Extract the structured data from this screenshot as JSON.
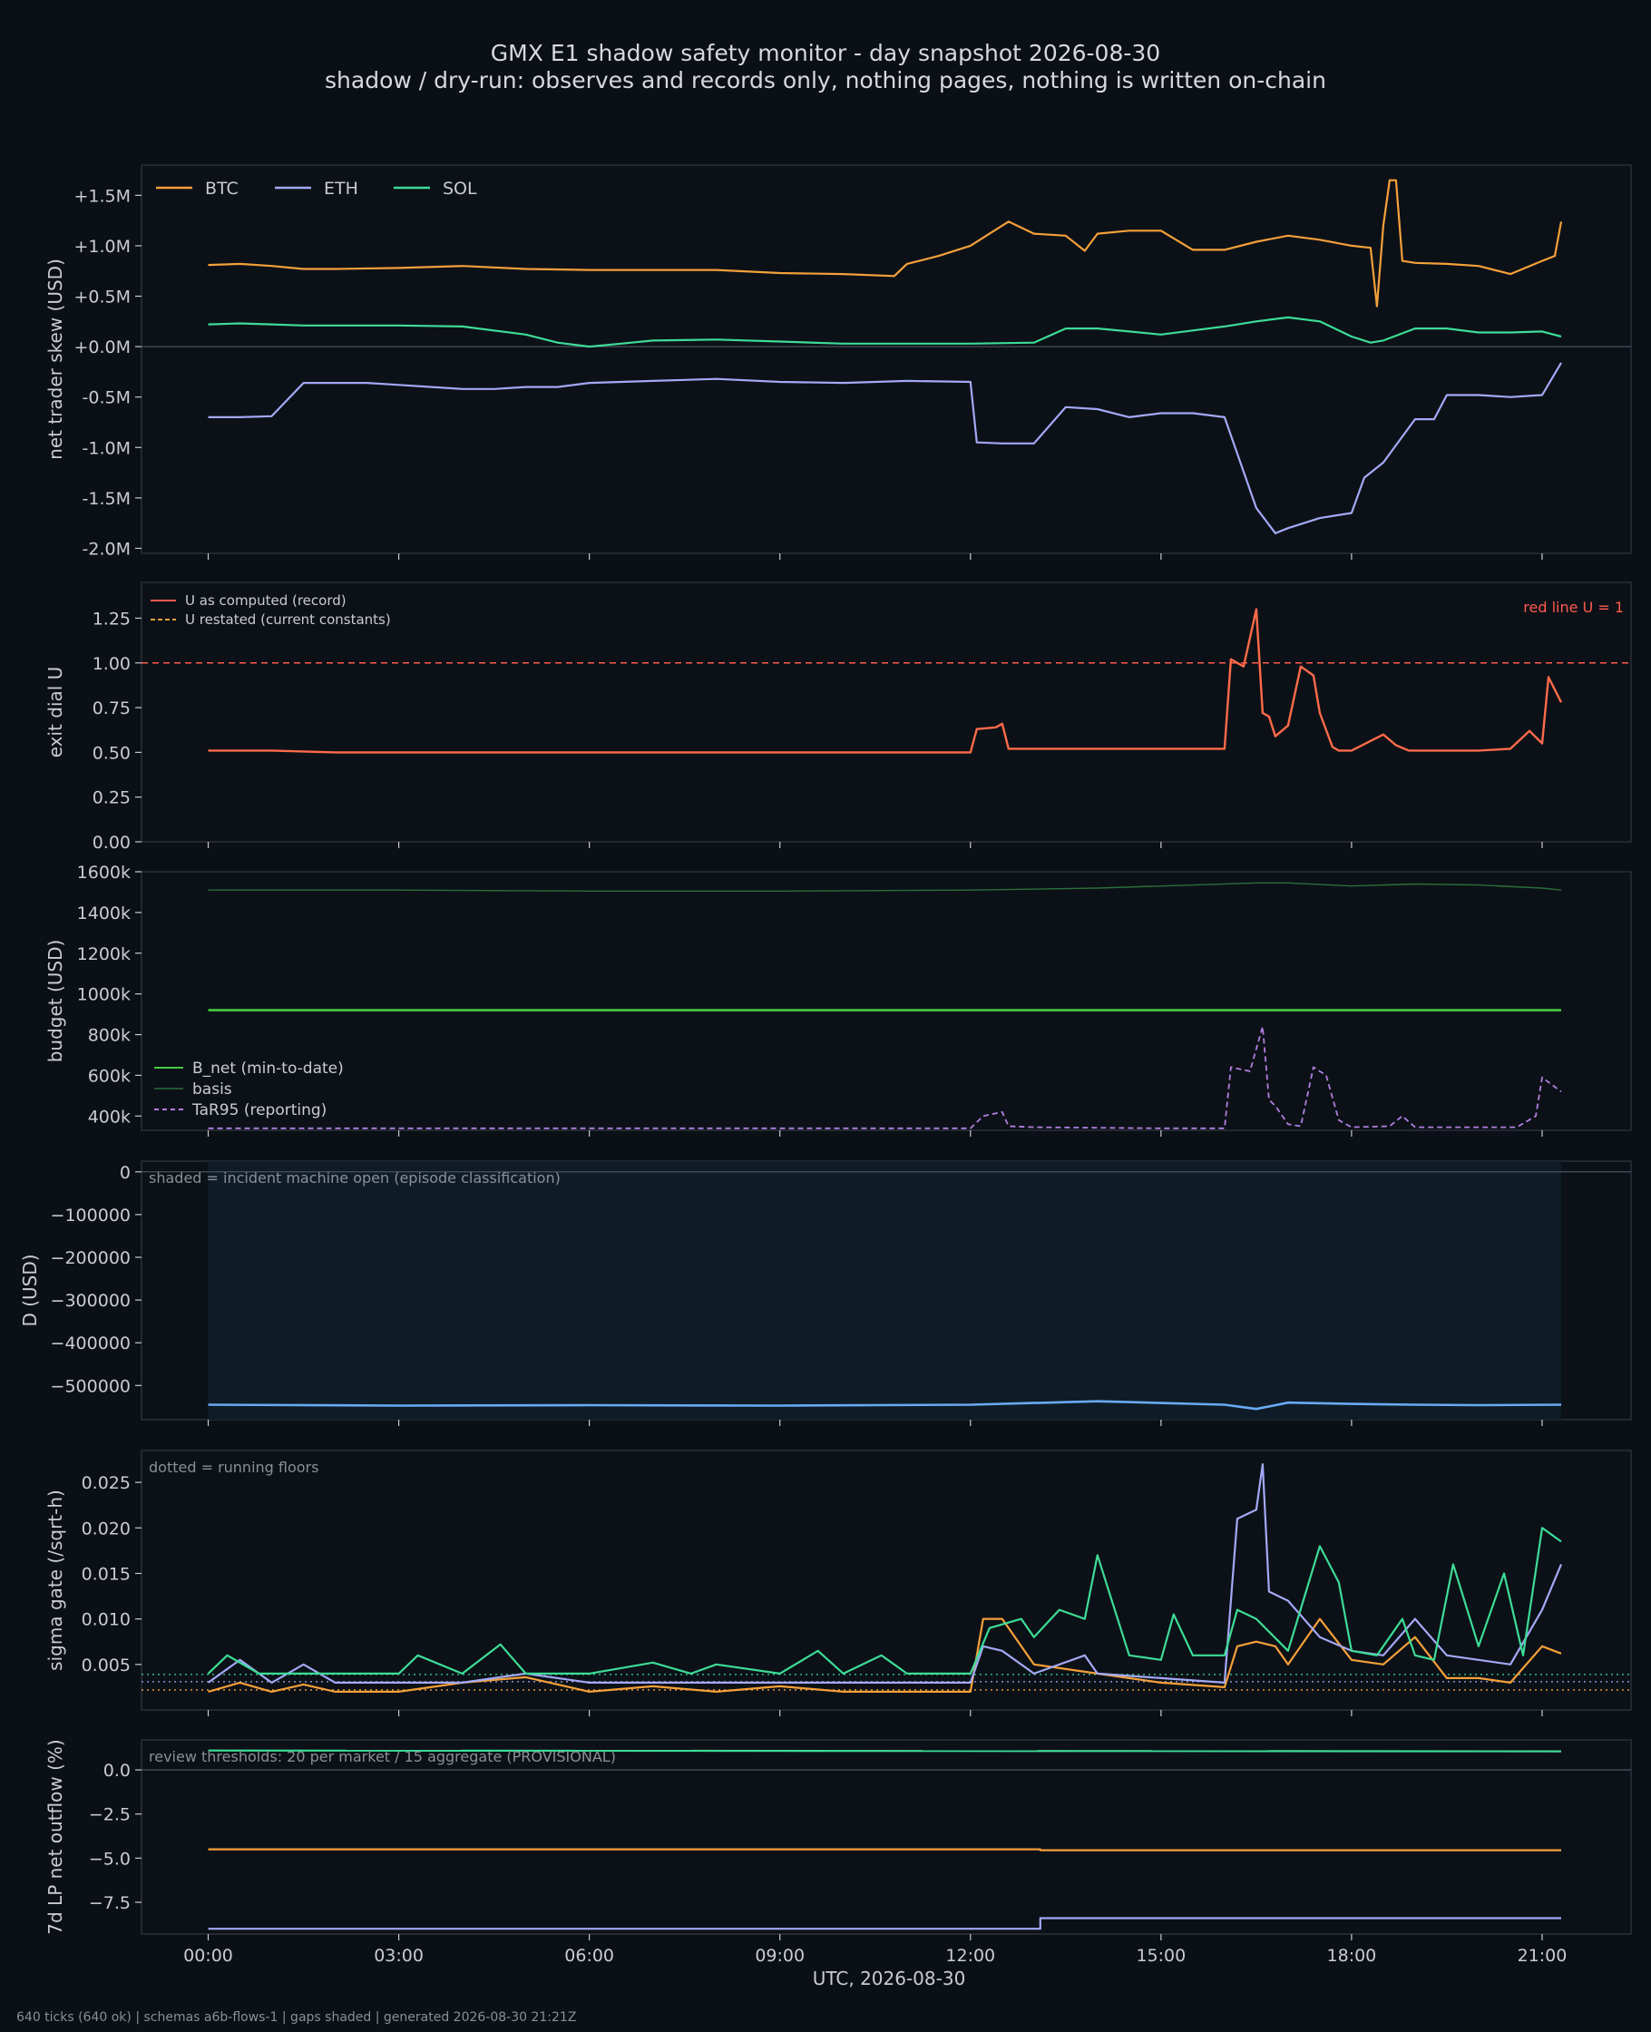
{
  "header": {
    "title": "GMX E1 shadow safety monitor - day snapshot 2026-08-30",
    "subtitle": "shadow / dry-run: observes and records only, nothing pages, nothing is written on-chain"
  },
  "footer": "640 ticks (640 ok) | schemas a6b-flows-1 | gaps shaded | generated 2026-08-30 21:21Z",
  "colors": {
    "btc": "#f5a03a",
    "eth": "#a3a9f5",
    "sol": "#3ddc97",
    "red_line": "#ff5a4e",
    "u_record": "#ff6b4a",
    "u_restated": "#f2a33a",
    "b_net": "#44cc44",
    "basis": "#2d6e3a",
    "tar95": "#b07fe0",
    "d_line": "#6aaaf5",
    "shade": "#0f1c27"
  },
  "chart_data": [
    {
      "type": "line",
      "ylabel": "net trader skew (USD)",
      "ylim": [
        -2.05,
        1.8
      ],
      "yticks": [
        1.5,
        1.0,
        0.5,
        0.0,
        -0.5,
        -1.0,
        -1.5,
        -2.0
      ],
      "ytick_labels": [
        "+1.5M",
        "+1.0M",
        "+0.5M",
        "+0.0M",
        "-0.5M",
        "-1.0M",
        "-1.5M",
        "-2.0M"
      ],
      "legend": [
        "BTC",
        "ETH",
        "SOL"
      ],
      "series": [
        {
          "name": "BTC",
          "x": [
            0,
            0.5,
            1.0,
            1.5,
            2.0,
            3.0,
            4.0,
            5.0,
            6.0,
            7.0,
            8.0,
            9.0,
            10.0,
            10.8,
            11.0,
            11.5,
            12.0,
            12.3,
            12.6,
            13.0,
            13.5,
            13.8,
            14.0,
            14.5,
            15.0,
            15.5,
            16.0,
            16.5,
            17.0,
            17.5,
            18.0,
            18.3,
            18.4,
            18.5,
            18.6,
            18.7,
            18.8,
            19.0,
            19.5,
            20.0,
            20.5,
            21.0,
            21.2,
            21.3
          ],
          "y": [
            0.81,
            0.82,
            0.8,
            0.77,
            0.77,
            0.78,
            0.8,
            0.77,
            0.76,
            0.76,
            0.76,
            0.73,
            0.72,
            0.7,
            0.82,
            0.9,
            1.0,
            1.12,
            1.24,
            1.12,
            1.1,
            0.95,
            1.12,
            1.15,
            1.15,
            0.96,
            0.96,
            1.04,
            1.1,
            1.06,
            1.0,
            0.98,
            0.4,
            1.2,
            1.65,
            1.65,
            0.85,
            0.83,
            0.82,
            0.8,
            0.72,
            0.85,
            0.9,
            1.24
          ]
        },
        {
          "name": "ETH",
          "x": [
            0,
            0.5,
            1.0,
            1.5,
            2.0,
            2.5,
            3.0,
            4.0,
            4.5,
            5.0,
            5.5,
            6.0,
            7.0,
            8.0,
            9.0,
            10.0,
            11.0,
            12.0,
            12.1,
            12.5,
            13.0,
            13.5,
            14.0,
            14.5,
            15.0,
            15.5,
            16.0,
            16.5,
            16.8,
            17.0,
            17.5,
            18.0,
            18.2,
            18.5,
            19.0,
            19.3,
            19.5,
            20.0,
            20.5,
            21.0,
            21.3
          ],
          "y": [
            -0.7,
            -0.7,
            -0.69,
            -0.36,
            -0.36,
            -0.36,
            -0.38,
            -0.42,
            -0.42,
            -0.4,
            -0.4,
            -0.36,
            -0.34,
            -0.32,
            -0.35,
            -0.36,
            -0.34,
            -0.35,
            -0.95,
            -0.96,
            -0.96,
            -0.6,
            -0.62,
            -0.7,
            -0.66,
            -0.66,
            -0.7,
            -1.6,
            -1.85,
            -1.8,
            -1.7,
            -1.65,
            -1.3,
            -1.15,
            -0.72,
            -0.72,
            -0.48,
            -0.48,
            -0.5,
            -0.48,
            -0.16
          ]
        },
        {
          "name": "SOL",
          "x": [
            0,
            0.5,
            1.0,
            1.5,
            2.0,
            3.0,
            4.0,
            5.0,
            5.5,
            6.0,
            6.5,
            7.0,
            8.0,
            9.0,
            10.0,
            11.0,
            12.0,
            13.0,
            13.5,
            14.0,
            14.5,
            15.0,
            15.5,
            16.0,
            16.5,
            17.0,
            17.5,
            18.0,
            18.3,
            18.5,
            19.0,
            19.5,
            20.0,
            20.5,
            21.0,
            21.3
          ],
          "y": [
            0.22,
            0.23,
            0.22,
            0.21,
            0.21,
            0.21,
            0.2,
            0.12,
            0.04,
            0.0,
            0.03,
            0.06,
            0.07,
            0.05,
            0.03,
            0.03,
            0.03,
            0.04,
            0.18,
            0.18,
            0.15,
            0.12,
            0.16,
            0.2,
            0.25,
            0.29,
            0.25,
            0.1,
            0.04,
            0.06,
            0.18,
            0.18,
            0.14,
            0.14,
            0.15,
            0.1
          ]
        }
      ]
    },
    {
      "type": "line",
      "ylabel": "exit dial U",
      "ylim": [
        0,
        1.45
      ],
      "yticks": [
        0,
        0.25,
        0.5,
        0.75,
        1.0,
        1.25
      ],
      "ytick_labels": [
        "0.00",
        "0.25",
        "0.50",
        "0.75",
        "1.00",
        "1.25"
      ],
      "legend": [
        "U as computed (record)",
        "U restated (current constants)"
      ],
      "annotation": "red line U = 1",
      "red_line": 1.0,
      "series": [
        {
          "name": "U as computed (record)",
          "x": [
            0,
            1,
            2,
            3,
            4,
            5,
            6,
            7,
            8,
            9,
            10,
            11,
            12.0,
            12.1,
            12.4,
            12.5,
            12.6,
            13,
            14,
            15,
            16.0,
            16.1,
            16.3,
            16.5,
            16.6,
            16.7,
            16.8,
            17.0,
            17.2,
            17.4,
            17.5,
            17.7,
            17.8,
            18.0,
            18.5,
            18.7,
            18.9,
            19.5,
            20.0,
            20.5,
            20.8,
            21.0,
            21.1,
            21.3
          ],
          "y": [
            0.51,
            0.51,
            0.5,
            0.5,
            0.5,
            0.5,
            0.5,
            0.5,
            0.5,
            0.5,
            0.5,
            0.5,
            0.5,
            0.63,
            0.64,
            0.66,
            0.52,
            0.52,
            0.52,
            0.52,
            0.52,
            1.02,
            0.98,
            1.3,
            0.72,
            0.7,
            0.59,
            0.65,
            0.98,
            0.93,
            0.72,
            0.53,
            0.51,
            0.51,
            0.6,
            0.54,
            0.51,
            0.51,
            0.51,
            0.52,
            0.62,
            0.55,
            0.92,
            0.78
          ]
        }
      ]
    },
    {
      "type": "line",
      "ylabel": "budget (USD)",
      "ylim": [
        330000,
        1600000
      ],
      "yticks": [
        400000,
        600000,
        800000,
        1000000,
        1200000,
        1400000,
        1600000
      ],
      "ytick_labels": [
        "400k",
        "600k",
        "800k",
        "1000k",
        "1200k",
        "1400k",
        "1600k"
      ],
      "legend": [
        "B_net (min-to-date)",
        "basis",
        "TaR95 (reporting)"
      ],
      "series": [
        {
          "name": "B_net (min-to-date)",
          "x": [
            0,
            21.3
          ],
          "y": [
            920000,
            920000
          ]
        },
        {
          "name": "basis",
          "x": [
            0,
            3,
            6,
            9,
            12,
            14,
            16.5,
            17,
            18,
            19,
            20,
            21,
            21.3
          ],
          "y": [
            1510000,
            1510000,
            1505000,
            1505000,
            1510000,
            1520000,
            1545000,
            1545000,
            1530000,
            1540000,
            1535000,
            1520000,
            1510000
          ]
        },
        {
          "name": "TaR95 (reporting)",
          "x": [
            0,
            6,
            12,
            12.2,
            12.5,
            12.6,
            13,
            15,
            16,
            16.1,
            16.4,
            16.6,
            16.7,
            16.8,
            17,
            17.2,
            17.4,
            17.6,
            17.8,
            18,
            18.6,
            18.8,
            19,
            20,
            20.6,
            20.9,
            21.0,
            21.3
          ],
          "y": [
            340000,
            340000,
            340000,
            400000,
            420000,
            350000,
            345000,
            340000,
            340000,
            640000,
            620000,
            840000,
            480000,
            450000,
            360000,
            350000,
            640000,
            600000,
            380000,
            345000,
            350000,
            400000,
            345000,
            345000,
            345000,
            400000,
            590000,
            520000
          ]
        }
      ]
    },
    {
      "type": "line",
      "ylabel": "D (USD)",
      "ylim": [
        -580000,
        25000
      ],
      "yticks": [
        0,
        -100000,
        -200000,
        -300000,
        -400000,
        -500000
      ],
      "ytick_labels": [
        "0",
        "−100000",
        "−200000",
        "−300000",
        "−400000",
        "−500000"
      ],
      "annotation": "shaded = incident machine open (episode classification)",
      "shade": [
        0,
        21.3
      ],
      "series": [
        {
          "name": "D",
          "x": [
            0,
            3,
            6,
            9,
            12,
            14,
            16,
            16.5,
            17,
            18,
            19,
            20,
            21.3
          ],
          "y": [
            -545000,
            -547000,
            -546000,
            -547000,
            -545000,
            -537000,
            -545000,
            -555000,
            -540000,
            -543000,
            -545000,
            -546000,
            -545000
          ]
        }
      ]
    },
    {
      "type": "line",
      "ylabel": "sigma gate (/sqrt-h)",
      "ylim": [
        0.0,
        0.0285
      ],
      "yticks": [
        0.005,
        0.01,
        0.015,
        0.02,
        0.025
      ],
      "ytick_labels": [
        "0.005",
        "0.010",
        "0.015",
        "0.020",
        "0.025"
      ],
      "annotation": "dotted = running floors",
      "floors": [
        {
          "name": "BTC",
          "y": 0.0022
        },
        {
          "name": "ETH",
          "y": 0.0031
        },
        {
          "name": "SOL",
          "y": 0.0039
        }
      ],
      "series": [
        {
          "name": "BTC",
          "x": [
            0,
            0.5,
            1,
            1.5,
            2,
            3,
            4,
            5,
            6,
            7,
            8,
            9,
            10,
            11,
            12.0,
            12.2,
            12.5,
            13,
            14,
            15,
            16,
            16.2,
            16.5,
            16.8,
            17,
            17.5,
            18,
            18.5,
            19,
            19.5,
            20,
            20.5,
            21,
            21.3
          ],
          "y": [
            0.002,
            0.003,
            0.002,
            0.0028,
            0.002,
            0.002,
            0.003,
            0.0036,
            0.002,
            0.0026,
            0.002,
            0.0026,
            0.002,
            0.002,
            0.002,
            0.01,
            0.01,
            0.005,
            0.004,
            0.003,
            0.0025,
            0.007,
            0.0075,
            0.007,
            0.005,
            0.01,
            0.0055,
            0.005,
            0.008,
            0.0035,
            0.0035,
            0.003,
            0.007,
            0.0062
          ]
        },
        {
          "name": "ETH",
          "x": [
            0,
            0.5,
            1,
            1.5,
            2,
            3,
            4,
            5,
            6,
            7,
            8,
            9,
            10,
            11,
            12.0,
            12.2,
            12.5,
            13,
            13.8,
            14,
            15,
            16,
            16.2,
            16.5,
            16.6,
            16.7,
            17,
            17.5,
            18,
            18.5,
            19,
            19.5,
            20,
            20.5,
            21,
            21.3
          ],
          "y": [
            0.003,
            0.0055,
            0.003,
            0.005,
            0.003,
            0.003,
            0.003,
            0.004,
            0.003,
            0.003,
            0.003,
            0.003,
            0.003,
            0.003,
            0.003,
            0.007,
            0.0065,
            0.004,
            0.006,
            0.004,
            0.0035,
            0.003,
            0.021,
            0.022,
            0.027,
            0.013,
            0.012,
            0.008,
            0.0065,
            0.006,
            0.01,
            0.006,
            0.0055,
            0.005,
            0.011,
            0.016
          ]
        },
        {
          "name": "SOL",
          "x": [
            0,
            0.3,
            0.8,
            1.5,
            2,
            3,
            3.3,
            4,
            4.6,
            5,
            5.4,
            6,
            7,
            7.6,
            8,
            9,
            9.6,
            10,
            10.6,
            11,
            12.0,
            12.3,
            12.8,
            13,
            13.4,
            13.8,
            14,
            14.5,
            15,
            15.2,
            15.5,
            16,
            16.2,
            16.5,
            17,
            17.5,
            17.8,
            18,
            18.4,
            18.8,
            19,
            19.3,
            19.6,
            20,
            20.4,
            20.7,
            21,
            21.3
          ],
          "y": [
            0.004,
            0.006,
            0.004,
            0.004,
            0.004,
            0.004,
            0.006,
            0.004,
            0.0072,
            0.004,
            0.004,
            0.004,
            0.0052,
            0.004,
            0.005,
            0.004,
            0.0065,
            0.004,
            0.006,
            0.004,
            0.004,
            0.009,
            0.01,
            0.008,
            0.011,
            0.01,
            0.017,
            0.006,
            0.0055,
            0.0105,
            0.006,
            0.006,
            0.011,
            0.01,
            0.0065,
            0.018,
            0.014,
            0.0065,
            0.006,
            0.01,
            0.006,
            0.0055,
            0.016,
            0.007,
            0.015,
            0.006,
            0.02,
            0.0185
          ]
        }
      ]
    },
    {
      "type": "line",
      "ylabel": "7d LP net outflow (%)",
      "ylim": [
        -9.3,
        1.7
      ],
      "yticks": [
        0.0,
        -2.5,
        -5.0,
        -7.5
      ],
      "ytick_labels": [
        "0.0",
        "−2.5",
        "−5.0",
        "−7.5"
      ],
      "annotation": "review thresholds: 20 per market / 15 aggregate (PROVISIONAL)",
      "series": [
        {
          "name": "SOL",
          "x": [
            0,
            21.3
          ],
          "y": [
            1.1,
            1.05
          ]
        },
        {
          "name": "BTC",
          "x": [
            0,
            13.1,
            13.1,
            21.3
          ],
          "y": [
            -4.5,
            -4.5,
            -4.55,
            -4.55
          ]
        },
        {
          "name": "ETH",
          "x": [
            0,
            13.1,
            13.1,
            21.3
          ],
          "y": [
            -9.0,
            -9.0,
            -8.4,
            -8.4
          ]
        }
      ]
    }
  ],
  "x_axis": {
    "xlabel": "UTC, 2026-08-30",
    "xlim": [
      -1.05,
      22.4
    ],
    "ticks": [
      0,
      3,
      6,
      9,
      12,
      15,
      18,
      21
    ],
    "tick_labels": [
      "00:00",
      "03:00",
      "06:00",
      "09:00",
      "12:00",
      "15:00",
      "18:00",
      "21:00"
    ]
  }
}
